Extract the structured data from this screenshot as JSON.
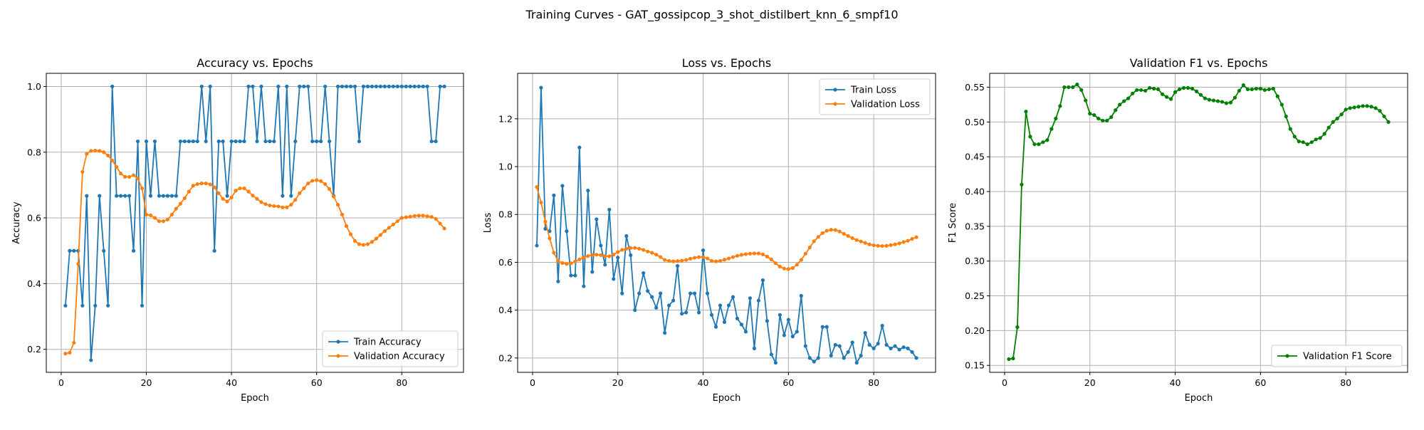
{
  "figure_title": "Training Curves - GAT_gossipcop_3_shot_distilbert_knn_6_smpf10",
  "chart_data": [
    {
      "type": "line",
      "title": "Accuracy vs. Epochs",
      "xlabel": "Epoch",
      "ylabel": "Accuracy",
      "xlim": [
        -3.5,
        94.5
      ],
      "ylim": [
        0.13,
        1.04
      ],
      "xticks": [
        0,
        20,
        40,
        60,
        80
      ],
      "yticks": [
        0.2,
        0.4,
        0.6,
        0.8,
        1.0
      ],
      "ytick_labels": [
        "0.2",
        "0.4",
        "0.6",
        "0.8",
        "1.0"
      ],
      "grid": true,
      "legend_position": "lower-right",
      "series": [
        {
          "name": "Train Accuracy",
          "color": "#1f77b4",
          "values": [
            0.333,
            0.5,
            0.5,
            0.5,
            0.333,
            0.667,
            0.167,
            0.333,
            0.667,
            0.5,
            0.333,
            1.0,
            0.667,
            0.667,
            0.667,
            0.667,
            0.5,
            0.833,
            0.333,
            0.833,
            0.667,
            0.833,
            0.667,
            0.667,
            0.667,
            0.667,
            0.667,
            0.833,
            0.833,
            0.833,
            0.833,
            0.833,
            1.0,
            0.833,
            1.0,
            0.5,
            0.833,
            0.833,
            0.667,
            0.833,
            0.833,
            0.833,
            0.833,
            1.0,
            1.0,
            0.833,
            1.0,
            0.833,
            0.833,
            0.833,
            1.0,
            0.667,
            1.0,
            0.667,
            0.833,
            1.0,
            1.0,
            1.0,
            0.833,
            0.833,
            0.833,
            1.0,
            0.833,
            0.667,
            1.0,
            1.0,
            1.0,
            1.0,
            1.0,
            0.833,
            1.0,
            1.0,
            1.0,
            1.0,
            1.0,
            1.0,
            1.0,
            1.0,
            1.0,
            1.0,
            1.0,
            1.0,
            1.0,
            1.0,
            1.0,
            1.0,
            0.833,
            0.833,
            1.0,
            1.0
          ]
        },
        {
          "name": "Validation Accuracy",
          "color": "#ff7f0e",
          "values": [
            0.187,
            0.19,
            0.22,
            0.46,
            0.74,
            0.795,
            0.804,
            0.805,
            0.804,
            0.8,
            0.79,
            0.775,
            0.755,
            0.735,
            0.725,
            0.725,
            0.73,
            0.72,
            0.69,
            0.61,
            0.608,
            0.6,
            0.59,
            0.59,
            0.595,
            0.61,
            0.628,
            0.643,
            0.66,
            0.68,
            0.698,
            0.703,
            0.705,
            0.705,
            0.702,
            0.693,
            0.675,
            0.658,
            0.65,
            0.662,
            0.683,
            0.69,
            0.69,
            0.68,
            0.668,
            0.658,
            0.648,
            0.642,
            0.638,
            0.636,
            0.635,
            0.632,
            0.632,
            0.64,
            0.655,
            0.675,
            0.69,
            0.705,
            0.713,
            0.715,
            0.712,
            0.703,
            0.688,
            0.665,
            0.64,
            0.61,
            0.575,
            0.55,
            0.53,
            0.52,
            0.518,
            0.52,
            0.527,
            0.537,
            0.548,
            0.56,
            0.57,
            0.58,
            0.59,
            0.6,
            0.602,
            0.604,
            0.606,
            0.607,
            0.607,
            0.605,
            0.603,
            0.597,
            0.583,
            0.568
          ]
        }
      ]
    },
    {
      "type": "line",
      "title": "Loss vs. Epochs",
      "xlabel": "Epoch",
      "ylabel": "Loss",
      "xlim": [
        -3.5,
        94.5
      ],
      "ylim": [
        0.14,
        1.39
      ],
      "xticks": [
        0,
        20,
        40,
        60,
        80
      ],
      "yticks": [
        0.2,
        0.4,
        0.6,
        0.8,
        1.0,
        1.2
      ],
      "ytick_labels": [
        "0.2",
        "0.4",
        "0.6",
        "0.8",
        "1.0",
        "1.2"
      ],
      "grid": true,
      "legend_position": "upper-right",
      "series": [
        {
          "name": "Train Loss",
          "color": "#1f77b4",
          "values": [
            0.67,
            1.33,
            0.74,
            0.73,
            0.88,
            0.52,
            0.92,
            0.73,
            0.545,
            0.545,
            1.08,
            0.5,
            0.9,
            0.56,
            0.78,
            0.67,
            0.59,
            0.82,
            0.53,
            0.62,
            0.47,
            0.71,
            0.63,
            0.4,
            0.47,
            0.555,
            0.48,
            0.455,
            0.41,
            0.47,
            0.305,
            0.42,
            0.44,
            0.585,
            0.385,
            0.39,
            0.47,
            0.47,
            0.39,
            0.65,
            0.47,
            0.38,
            0.33,
            0.42,
            0.35,
            0.42,
            0.455,
            0.365,
            0.34,
            0.31,
            0.45,
            0.24,
            0.44,
            0.525,
            0.355,
            0.215,
            0.18,
            0.38,
            0.295,
            0.36,
            0.29,
            0.31,
            0.46,
            0.25,
            0.2,
            0.185,
            0.2,
            0.33,
            0.33,
            0.21,
            0.255,
            0.25,
            0.2,
            0.225,
            0.265,
            0.18,
            0.21,
            0.305,
            0.255,
            0.24,
            0.26,
            0.335,
            0.255,
            0.24,
            0.25,
            0.235,
            0.245,
            0.24,
            0.225,
            0.2
          ]
        },
        {
          "name": "Validation Loss",
          "color": "#ff7f0e",
          "values": [
            0.915,
            0.85,
            0.77,
            0.7,
            0.64,
            0.605,
            0.597,
            0.593,
            0.596,
            0.603,
            0.612,
            0.62,
            0.626,
            0.63,
            0.632,
            0.63,
            0.626,
            0.625,
            0.632,
            0.643,
            0.652,
            0.657,
            0.66,
            0.66,
            0.657,
            0.652,
            0.645,
            0.64,
            0.632,
            0.622,
            0.61,
            0.606,
            0.604,
            0.605,
            0.607,
            0.61,
            0.615,
            0.619,
            0.622,
            0.622,
            0.616,
            0.606,
            0.604,
            0.606,
            0.611,
            0.616,
            0.622,
            0.627,
            0.631,
            0.634,
            0.636,
            0.637,
            0.637,
            0.633,
            0.624,
            0.612,
            0.596,
            0.582,
            0.574,
            0.572,
            0.576,
            0.59,
            0.61,
            0.636,
            0.662,
            0.688,
            0.706,
            0.722,
            0.732,
            0.736,
            0.735,
            0.729,
            0.719,
            0.71,
            0.701,
            0.693,
            0.687,
            0.681,
            0.675,
            0.671,
            0.669,
            0.668,
            0.669,
            0.672,
            0.675,
            0.679,
            0.685,
            0.69,
            0.698,
            0.705
          ]
        }
      ]
    },
    {
      "type": "line",
      "title": "Validation F1 vs. Epochs",
      "xlabel": "Epoch",
      "ylabel": "F1 Score",
      "xlim": [
        -3.5,
        94.5
      ],
      "ylim": [
        0.14,
        0.57
      ],
      "xticks": [
        0,
        20,
        40,
        60,
        80
      ],
      "yticks": [
        0.15,
        0.2,
        0.25,
        0.3,
        0.35,
        0.4,
        0.45,
        0.5,
        0.55
      ],
      "ytick_labels": [
        "0.15",
        "0.20",
        "0.25",
        "0.30",
        "0.35",
        "0.40",
        "0.45",
        "0.50",
        "0.55"
      ],
      "grid": true,
      "legend_position": "lower-right",
      "series": [
        {
          "name": "Validation F1 Score",
          "color": "#008000",
          "values": [
            0.159,
            0.16,
            0.205,
            0.41,
            0.515,
            0.479,
            0.468,
            0.468,
            0.471,
            0.474,
            0.49,
            0.505,
            0.523,
            0.55,
            0.55,
            0.55,
            0.554,
            0.546,
            0.531,
            0.512,
            0.51,
            0.505,
            0.502,
            0.502,
            0.507,
            0.517,
            0.525,
            0.53,
            0.534,
            0.541,
            0.546,
            0.546,
            0.545,
            0.549,
            0.548,
            0.547,
            0.54,
            0.536,
            0.533,
            0.543,
            0.547,
            0.549,
            0.549,
            0.548,
            0.544,
            0.539,
            0.534,
            0.532,
            0.531,
            0.53,
            0.529,
            0.527,
            0.528,
            0.535,
            0.545,
            0.553,
            0.547,
            0.547,
            0.548,
            0.548,
            0.546,
            0.547,
            0.548,
            0.537,
            0.525,
            0.508,
            0.49,
            0.479,
            0.472,
            0.471,
            0.468,
            0.471,
            0.475,
            0.477,
            0.483,
            0.492,
            0.5,
            0.505,
            0.511,
            0.518,
            0.52,
            0.521,
            0.522,
            0.523,
            0.523,
            0.522,
            0.52,
            0.516,
            0.508,
            0.5
          ]
        }
      ]
    }
  ]
}
